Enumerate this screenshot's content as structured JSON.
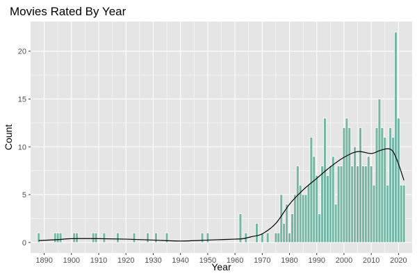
{
  "chart_data": {
    "type": "bar",
    "title": "Movies Rated By Year",
    "xlabel": "Year",
    "ylabel": "Count",
    "xlim": [
      1885,
      2025
    ],
    "ylim": [
      -1.1,
      23.1
    ],
    "x_ticks": [
      1890,
      1900,
      1910,
      1920,
      1930,
      1940,
      1950,
      1960,
      1970,
      1980,
      1990,
      2000,
      2010,
      2020
    ],
    "y_ticks": [
      0,
      5,
      10,
      15,
      20
    ],
    "grid": true,
    "legend": "none",
    "bar_color": "#77b5a4",
    "bar_edge_color": "#ffffff",
    "panel_background": "#e5e5e5",
    "grid_color": "#ffffff",
    "smooth_line_color": "#000000",
    "series": [
      {
        "kind": "bars",
        "x": [
          1888,
          1894,
          1895,
          1896,
          1901,
          1902,
          1908,
          1909,
          1912,
          1917,
          1923,
          1928,
          1931,
          1935,
          1948,
          1950,
          1962,
          1964,
          1968,
          1970,
          1972,
          1975,
          1976,
          1977,
          1978,
          1979,
          1980,
          1981,
          1982,
          1983,
          1984,
          1985,
          1986,
          1987,
          1988,
          1989,
          1990,
          1991,
          1992,
          1993,
          1994,
          1995,
          1996,
          1997,
          1998,
          1999,
          2000,
          2001,
          2002,
          2003,
          2004,
          2005,
          2006,
          2007,
          2008,
          2009,
          2010,
          2011,
          2012,
          2013,
          2014,
          2015,
          2016,
          2017,
          2018,
          2019,
          2020,
          2021,
          2022
        ],
        "values": [
          1,
          1,
          1,
          1,
          1,
          1,
          1,
          1,
          1,
          1,
          1,
          1,
          1,
          1,
          1,
          1,
          3,
          1,
          2,
          1,
          1,
          1,
          1,
          5,
          2,
          4,
          1,
          3,
          5,
          8,
          6,
          5,
          5,
          6,
          11,
          9,
          7,
          3,
          8,
          13,
          7,
          8,
          9,
          4,
          8,
          8,
          12,
          13,
          12,
          8,
          10,
          8,
          12,
          8,
          8,
          9,
          8,
          6,
          12,
          15,
          12,
          11,
          6,
          12,
          11,
          22,
          13,
          6,
          6
        ]
      },
      {
        "kind": "smooth",
        "x": [
          1888,
          1895,
          1900,
          1910,
          1920,
          1930,
          1940,
          1950,
          1955,
          1960,
          1963,
          1966,
          1970,
          1975,
          1980,
          1985,
          1990,
          1995,
          2000,
          2005,
          2010,
          2013,
          2016,
          2018,
          2020,
          2022
        ],
        "values": [
          0.2,
          0.3,
          0.4,
          0.4,
          0.35,
          0.25,
          0.15,
          0.25,
          0.3,
          0.35,
          0.4,
          0.6,
          0.9,
          2.0,
          4.0,
          5.5,
          6.7,
          7.9,
          8.9,
          9.5,
          9.3,
          9.6,
          9.8,
          9.5,
          8.2,
          6.5
        ]
      }
    ]
  }
}
